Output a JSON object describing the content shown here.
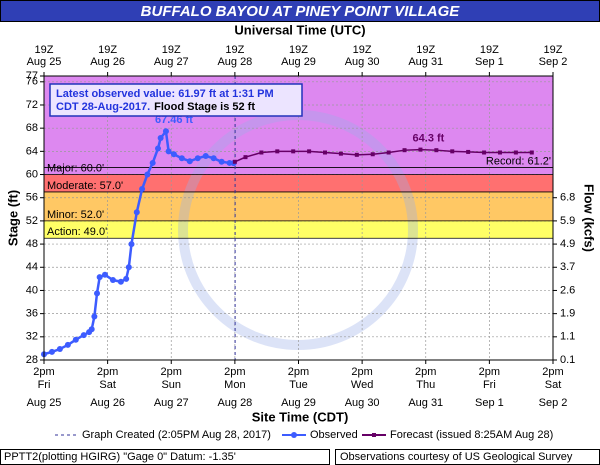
{
  "chart_data": {
    "type": "hydrograph",
    "title": "BUFFALO BAYOU AT PINEY POINT VILLAGE",
    "top_x_label": "Universal Time (UTC)",
    "x_label": "Site Time (CDT)",
    "y_label": "Stage (ft)",
    "y2_label": "Flow (kcfs)",
    "xlim": [
      "2017-08-25T14:00",
      "2017-09-02T14:00"
    ],
    "xticks": [
      {
        "value": "2017-08-25T14:00",
        "label": "2pm",
        "weekday": "Fri",
        "date": "Aug 25",
        "utc": "19Z"
      },
      {
        "value": "2017-08-26T14:00",
        "label": "2pm",
        "weekday": "Sat",
        "date": "Aug 26",
        "utc": "19Z"
      },
      {
        "value": "2017-08-27T14:00",
        "label": "2pm",
        "weekday": "Sun",
        "date": "Aug 27",
        "utc": "19Z"
      },
      {
        "value": "2017-08-28T14:00",
        "label": "2pm",
        "weekday": "Mon",
        "date": "Aug 28",
        "utc": "19Z"
      },
      {
        "value": "2017-08-29T14:00",
        "label": "2pm",
        "weekday": "Tue",
        "date": "Aug 29",
        "utc": "19Z"
      },
      {
        "value": "2017-08-30T14:00",
        "label": "2pm",
        "weekday": "Wed",
        "date": "Aug 30",
        "utc": "19Z"
      },
      {
        "value": "2017-08-31T14:00",
        "label": "2pm",
        "weekday": "Thu",
        "date": "Aug 31",
        "utc": "19Z"
      },
      {
        "value": "2017-09-01T14:00",
        "label": "2pm",
        "weekday": "Fri",
        "date": "Sep  1",
        "utc": "19Z"
      },
      {
        "value": "2017-09-02T14:00",
        "label": "2pm",
        "weekday": "Sat",
        "date": "Sep  2",
        "utc": "19Z"
      }
    ],
    "ylim": [
      28,
      77
    ],
    "yticks": [
      28,
      32,
      36,
      40,
      44,
      48,
      52,
      56,
      60,
      64,
      68,
      72,
      76,
      77
    ],
    "y2ticks": [
      6.8,
      5.9,
      4.9,
      3.7,
      2.6,
      1.9,
      1.1,
      0.1
    ],
    "y2_stage": [
      56,
      52,
      48,
      44,
      40,
      36,
      32,
      28
    ],
    "grid": true,
    "flood_categories": [
      {
        "label": "Action: 49.0'",
        "stage": 49,
        "color": "#ffff66"
      },
      {
        "label": "Minor: 52.0'",
        "stage": 52,
        "color": "#ffc864"
      },
      {
        "label": "Moderate: 57.0'",
        "stage": 57,
        "color": "#ff7070"
      },
      {
        "label": "Major: 60.0'",
        "stage": 60,
        "color": "#dd88f0"
      }
    ],
    "record": {
      "label": "Record: 61.2'",
      "stage": 61.2
    },
    "info": {
      "line1": "Latest observed value: 61.97 ft at 1:31 PM",
      "line2": "CDT 28-Aug-2017.",
      "flood_stage": "Flood Stage is 52 ft"
    },
    "created": {
      "name": "Graph Created (2:05PM Aug 28, 2017)",
      "x": "2017-08-28T14:05",
      "color": "#333399"
    },
    "series": [
      {
        "name": "Observed",
        "color": "#3d5cff",
        "marker": "circle",
        "x": [
          "2017-08-25T14:00",
          "2017-08-25T17:00",
          "2017-08-25T20:00",
          "2017-08-25T23:00",
          "2017-08-26T02:00",
          "2017-08-26T05:00",
          "2017-08-26T07:00",
          "2017-08-26T08:00",
          "2017-08-26T09:00",
          "2017-08-26T10:00",
          "2017-08-26T11:00",
          "2017-08-26T13:00",
          "2017-08-26T16:00",
          "2017-08-26T19:00",
          "2017-08-26T21:00",
          "2017-08-26T22:00",
          "2017-08-26T23:00",
          "2017-08-27T01:00",
          "2017-08-27T03:00",
          "2017-08-27T05:00",
          "2017-08-27T07:00",
          "2017-08-27T09:00",
          "2017-08-27T10:00",
          "2017-08-27T12:00",
          "2017-08-27T13:00",
          "2017-08-27T15:00",
          "2017-08-27T18:00",
          "2017-08-27T21:00",
          "2017-08-28T00:00",
          "2017-08-28T03:00",
          "2017-08-28T06:00",
          "2017-08-28T09:00",
          "2017-08-28T12:00",
          "2017-08-28T13:31"
        ],
        "values": [
          29.0,
          29.4,
          29.9,
          30.6,
          31.5,
          32.3,
          32.8,
          33.3,
          35.5,
          39.5,
          42.3,
          42.7,
          41.8,
          41.5,
          42.0,
          44.0,
          48.0,
          53.5,
          57.5,
          60.0,
          62.0,
          64.5,
          66.3,
          67.46,
          64.0,
          63.5,
          62.8,
          62.3,
          62.8,
          63.2,
          62.8,
          62.2,
          62.0,
          61.97
        ],
        "value_labels": [
          null,
          null,
          null,
          null,
          null,
          null,
          null,
          null,
          null,
          null,
          null,
          null,
          null,
          null,
          null,
          null,
          null,
          null,
          null,
          null,
          null,
          null,
          null,
          "67.46 ft",
          null,
          null,
          null,
          null,
          null,
          null,
          null,
          null,
          null,
          null
        ]
      },
      {
        "name": "Forecast (issued 8:25AM Aug 28)",
        "color": "#660066",
        "marker": "square",
        "x": [
          "2017-08-28T14:00",
          "2017-08-28T18:00",
          "2017-08-29T00:00",
          "2017-08-29T06:00",
          "2017-08-29T12:00",
          "2017-08-29T18:00",
          "2017-08-30T00:00",
          "2017-08-30T06:00",
          "2017-08-30T12:00",
          "2017-08-30T18:00",
          "2017-08-31T00:00",
          "2017-08-31T06:00",
          "2017-08-31T12:00",
          "2017-08-31T18:00",
          "2017-09-01T00:00",
          "2017-09-01T06:00",
          "2017-09-01T12:00",
          "2017-09-01T18:00",
          "2017-09-02T00:00",
          "2017-09-02T06:00"
        ],
        "values": [
          62.2,
          63.0,
          63.8,
          64.0,
          64.0,
          64.0,
          63.8,
          63.6,
          63.4,
          63.5,
          63.8,
          64.2,
          64.3,
          64.2,
          64.0,
          63.9,
          63.8,
          63.8,
          63.8,
          63.8
        ],
        "value_labels": [
          null,
          null,
          null,
          null,
          null,
          null,
          null,
          null,
          null,
          null,
          null,
          null,
          "64.3 ft",
          null,
          null,
          null,
          null,
          null,
          null,
          null
        ]
      }
    ],
    "datum_note": "PPTT2(plotting HGIRG) \"Gage 0\" Datum: -1.35'",
    "source_note": "Observations courtesy of US Geological Survey"
  }
}
